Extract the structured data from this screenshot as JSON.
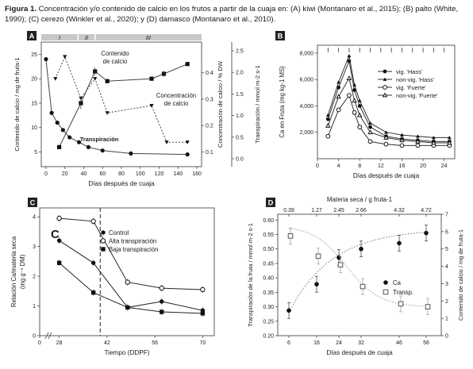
{
  "caption": {
    "label": "Figura 1.",
    "text": "Concentración y/o contenido de calcio en los frutos a partir de la cuaja en: (A) kiwi (Montanaro et al., 2015); (B) palto (White, 1990); (C) cerezo (Winkler et al., 2020); y (D) damasco (Montanaro et al., 2010)."
  },
  "chart_data": [
    {
      "panel": "A",
      "type": "line",
      "xlabel": "Días después de cuaja",
      "ylabel_left": "Contenido de calcio / mg de fruta-1",
      "ylabel_right1": "Concentración de calcio / % DW",
      "ylabel_right2": "Transpiración / mmol m-2 s-1",
      "x_ticks": [
        "0",
        "20",
        "40",
        "60",
        "80",
        "100",
        "120",
        "140",
        "160"
      ],
      "y_ticks_left": [
        "5",
        "10",
        "15",
        "20",
        "25"
      ],
      "y_ticks_right1": [
        "0.1",
        "0.2",
        "0.3",
        "0.4"
      ],
      "y_ticks_right2": [
        "0.0",
        "0.5",
        "1.0",
        "1.5",
        "2.0",
        "2.5"
      ],
      "xlim": [
        -5,
        165
      ],
      "ylim_left": [
        2,
        27.5
      ],
      "stages": [
        "I",
        "II",
        "III"
      ],
      "annotations": [
        "Contenido de calcio",
        "Concentración de calcio",
        "Transpiración"
      ],
      "series": [
        {
          "name": "Contenido de calcio",
          "marker": "square",
          "x": [
            14,
            37,
            52,
            65,
            112,
            125,
            150
          ],
          "y": [
            6,
            15,
            21.5,
            19.5,
            20,
            21,
            23
          ]
        },
        {
          "name": "Concentración de calcio",
          "marker": "triangle-down",
          "x": [
            10,
            20,
            37,
            52,
            65,
            112,
            128,
            150
          ],
          "y": [
            20,
            24.5,
            16,
            20,
            13,
            14.5,
            7,
            7
          ]
        },
        {
          "name": "Transpiración",
          "marker": "circle",
          "x": [
            0,
            6,
            12,
            18,
            25,
            35,
            45,
            60,
            90,
            150
          ],
          "y": [
            24,
            13,
            11,
            9.5,
            8,
            7,
            6,
            5.3,
            4.7,
            4.5
          ]
        }
      ]
    },
    {
      "panel": "B",
      "type": "line",
      "xlabel": "Días después de cuaja",
      "ylabel": "Ca en Fruta (mg kg-1 MS)",
      "x_ticks": [
        "0",
        "4",
        "8",
        "12",
        "16",
        "20",
        "24"
      ],
      "y_ticks": [
        "2,000",
        "4,000",
        "6,000",
        "8,000"
      ],
      "xlim": [
        0,
        26
      ],
      "ylim": [
        0,
        8600
      ],
      "series": [
        {
          "name": "vig. 'Hass'",
          "marker": "filled-circle",
          "x": [
            2,
            4,
            6,
            7,
            8,
            10,
            13,
            16,
            19,
            22,
            25
          ],
          "y": [
            3000,
            5400,
            7400,
            5200,
            4000,
            2400,
            1700,
            1500,
            1400,
            1300,
            1300
          ]
        },
        {
          "name": "non-vig. 'Hass'",
          "marker": "filled-triangle",
          "x": [
            2,
            4,
            6,
            7,
            8,
            10,
            13,
            16,
            19,
            22,
            25
          ],
          "y": [
            3300,
            5800,
            7800,
            5600,
            4400,
            2700,
            2000,
            1800,
            1700,
            1600,
            1600
          ]
        },
        {
          "name": "vig. 'Fuerte'",
          "marker": "open-circle",
          "x": [
            2,
            4,
            6,
            7,
            8,
            10,
            13,
            16,
            19,
            22,
            25
          ],
          "y": [
            1700,
            3700,
            4800,
            3500,
            2400,
            1300,
            1100,
            1000,
            1000,
            1000,
            1000
          ]
        },
        {
          "name": "non-vig. 'Fuerte'",
          "marker": "open-triangle",
          "x": [
            2,
            4,
            6,
            7,
            8,
            10,
            13,
            16,
            19,
            22,
            25
          ],
          "y": [
            2500,
            4700,
            6100,
            4400,
            3300,
            2000,
            1600,
            1400,
            1300,
            1200,
            1200
          ]
        }
      ]
    },
    {
      "panel": "C",
      "type": "line",
      "inner_label": "C",
      "xlabel": "Tiempo (DDPF)",
      "ylabel": "Relación Ca/materia seca (mg g-1 DM)",
      "x_ticks": [
        "0",
        "28",
        "42",
        "56",
        "70"
      ],
      "y_ticks": [
        "0",
        "1",
        "2",
        "3",
        "4"
      ],
      "xlim": [
        20,
        72
      ],
      "ylim": [
        0,
        4.3
      ],
      "series": [
        {
          "name": "Control",
          "marker": "filled-circle",
          "x": [
            28,
            38,
            48,
            58,
            70
          ],
          "y": [
            3.2,
            2.45,
            0.95,
            1.15,
            0.85
          ]
        },
        {
          "name": "Alta transpiración",
          "marker": "open-circle",
          "x": [
            28,
            38,
            48,
            58,
            70
          ],
          "y": [
            3.95,
            3.85,
            1.8,
            1.6,
            1.55
          ]
        },
        {
          "name": "Baja transpiración",
          "marker": "filled-square",
          "x": [
            28,
            38,
            48,
            58,
            70
          ],
          "y": [
            2.45,
            1.45,
            0.95,
            0.8,
            0.75
          ]
        }
      ]
    },
    {
      "panel": "D",
      "type": "line",
      "top_label": "Materia seca / g fruta-1",
      "top_ticks": [
        "0.39",
        "1.27",
        "2.45",
        "2.66",
        "4.32",
        "4.72"
      ],
      "xlabel": "Días después de cuaja",
      "ylabel_left": "Transpiración de la fruta / mmol m-2 s-1",
      "ylabel_right": "Contenido de calcio / mg de fruta-1",
      "x_ticks": [
        "6",
        "16",
        "24",
        "32",
        "46",
        "56"
      ],
      "y_ticks_left": [
        "0.20",
        "0.25",
        "0.30",
        "0.35",
        "0.40",
        "0.45",
        "0.50",
        "0.55",
        "0.60"
      ],
      "y_ticks_right": [
        "0",
        "1",
        "2",
        "3",
        "4",
        "5",
        "6",
        "7"
      ],
      "ylim_left": [
        0.2,
        0.62
      ],
      "series": [
        {
          "name": "Ca",
          "marker": "filled-circle",
          "x": [
            6,
            16,
            24,
            32,
            46,
            56
          ],
          "y": [
            0.287,
            0.378,
            0.47,
            0.5,
            0.52,
            0.555
          ]
        },
        {
          "name": "Transp.",
          "marker": "open-square",
          "x": [
            6,
            16,
            24,
            32,
            46,
            56
          ],
          "y": [
            0.545,
            0.475,
            0.445,
            0.37,
            0.31,
            0.3
          ]
        }
      ]
    }
  ]
}
